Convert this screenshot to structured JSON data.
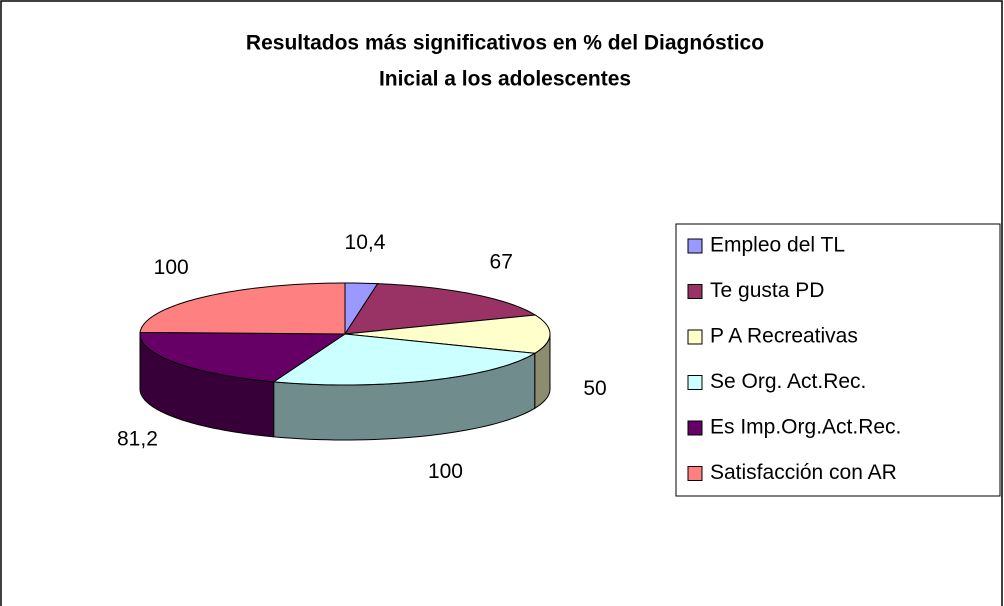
{
  "chart_data": {
    "type": "pie",
    "title": [
      "Resultados más significativos en % del Diagnóstico",
      "Inicial a los adolescentes"
    ],
    "categories": [
      "Empleo del TL",
      "Te gusta PD",
      "P A Recreativas",
      "Se Org. Act.Rec.",
      "Es Imp.Org.Act.Rec.",
      "Satisfacción con AR"
    ],
    "values": [
      10.4,
      67,
      50,
      100,
      81.2,
      100
    ],
    "value_labels": [
      "10,4",
      "67",
      "50",
      "100",
      "81,2",
      "100"
    ],
    "colors": [
      "#9999ff",
      "#993366",
      "#ffffcc",
      "#ccffff",
      "#660066",
      "#ff8080"
    ],
    "legend": "right"
  }
}
